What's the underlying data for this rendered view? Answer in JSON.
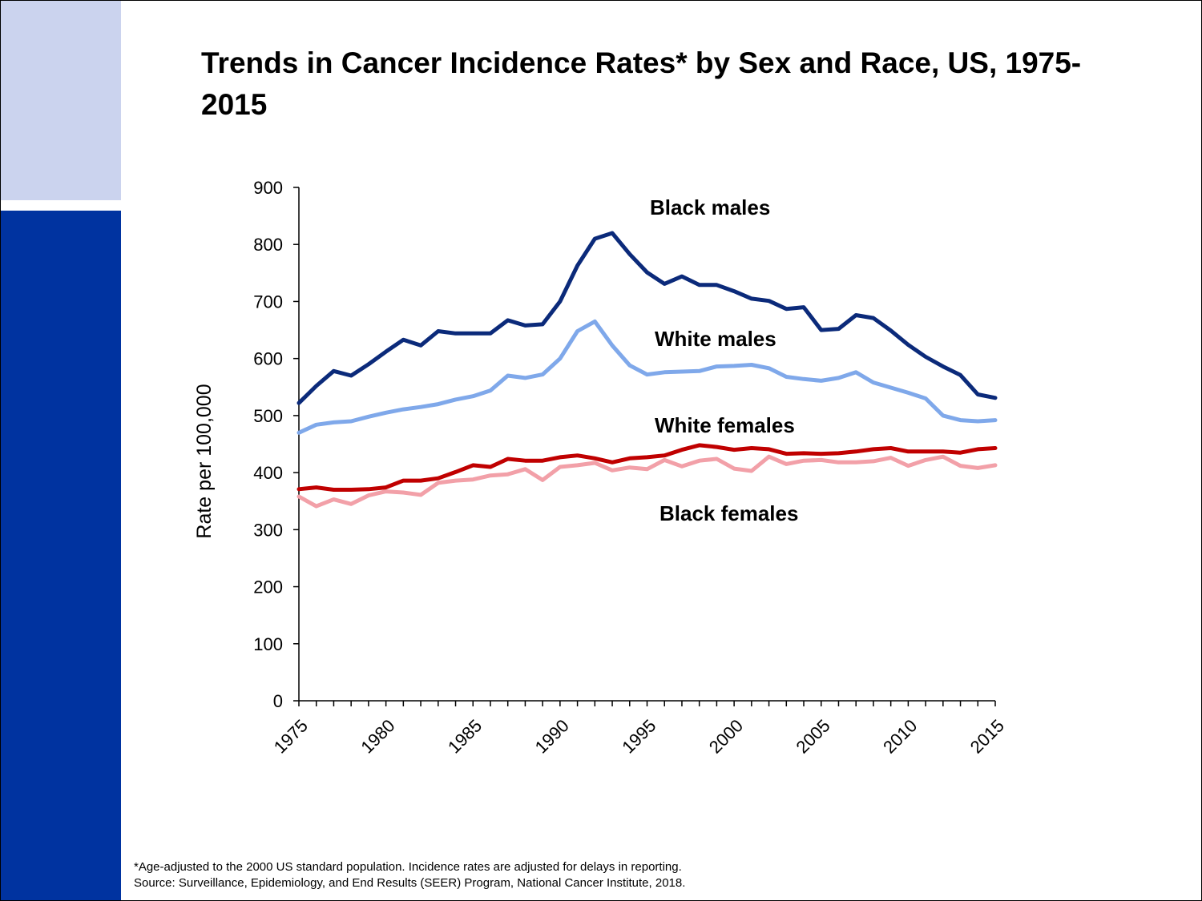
{
  "colors": {
    "band_light": "#CBD3EE",
    "band_dark": "#0033A0",
    "black_males": "#0B2A7A",
    "white_males": "#7FA8EA",
    "white_females": "#C00000",
    "black_females": "#F2A0A8"
  },
  "title": "Trends in Cancer Incidence Rates* by Sex and Race, US, 1975-2015",
  "chart_data": {
    "type": "line",
    "ylabel": "Rate per 100,000",
    "xlabel": "",
    "ylim": [
      0,
      900
    ],
    "xlim": [
      1975,
      2015
    ],
    "yticks": [
      0,
      100,
      200,
      300,
      400,
      500,
      600,
      700,
      800,
      900
    ],
    "xticks": [
      "1975",
      "1980",
      "1985",
      "1990",
      "1995",
      "2000",
      "2005",
      "2010",
      "2015"
    ],
    "grid": false,
    "x": [
      1975,
      1976,
      1977,
      1978,
      1979,
      1980,
      1981,
      1982,
      1983,
      1984,
      1985,
      1986,
      1987,
      1988,
      1989,
      1990,
      1991,
      1992,
      1993,
      1994,
      1995,
      1996,
      1997,
      1998,
      1999,
      2000,
      2001,
      2002,
      2003,
      2004,
      2005,
      2006,
      2007,
      2008,
      2009,
      2010,
      2011,
      2012,
      2013,
      2014,
      2015
    ],
    "series": [
      {
        "name": "Black males",
        "color_key": "black_males",
        "values": [
          522,
          552,
          578,
          570,
          590,
          612,
          633,
          623,
          648,
          644,
          644,
          644,
          667,
          658,
          660,
          700,
          763,
          810,
          820,
          783,
          751,
          731,
          744,
          729,
          729,
          718,
          705,
          701,
          687,
          690,
          650,
          652,
          676,
          671,
          649,
          624,
          603,
          586,
          571,
          537,
          531
        ]
      },
      {
        "name": "White males",
        "color_key": "white_males",
        "values": [
          470,
          484,
          488,
          490,
          498,
          505,
          511,
          515,
          520,
          528,
          534,
          544,
          570,
          566,
          572,
          600,
          648,
          665,
          623,
          588,
          572,
          576,
          577,
          578,
          586,
          587,
          589,
          583,
          568,
          564,
          561,
          566,
          576,
          558,
          549,
          540,
          530,
          500,
          492,
          490,
          492
        ]
      },
      {
        "name": "White females",
        "color_key": "white_females",
        "values": [
          371,
          374,
          370,
          370,
          371,
          374,
          386,
          386,
          390,
          401,
          413,
          410,
          424,
          421,
          421,
          427,
          430,
          425,
          418,
          425,
          427,
          430,
          440,
          448,
          445,
          440,
          443,
          441,
          433,
          434,
          433,
          434,
          437,
          441,
          443,
          437,
          437,
          437,
          435,
          441,
          443
        ]
      },
      {
        "name": "Black females",
        "color_key": "black_females",
        "values": [
          358,
          341,
          353,
          345,
          360,
          367,
          365,
          361,
          382,
          386,
          388,
          395,
          397,
          406,
          387,
          410,
          413,
          417,
          404,
          409,
          406,
          422,
          411,
          421,
          424,
          407,
          403,
          428,
          415,
          421,
          422,
          418,
          418,
          420,
          426,
          412,
          422,
          428,
          412,
          408,
          413
        ]
      }
    ],
    "annotations": [
      {
        "text": "Black males",
        "series": "Black males"
      },
      {
        "text": "White males",
        "series": "White males"
      },
      {
        "text": "White females",
        "series": "White females"
      },
      {
        "text": "Black females",
        "series": "Black females"
      }
    ]
  },
  "footnote": {
    "line1": "*Age-adjusted to the 2000 US standard population. Incidence rates are adjusted for delays in reporting.",
    "line2": "Source: Surveillance, Epidemiology, and End Results (SEER) Program, National Cancer Institute, 2018."
  }
}
